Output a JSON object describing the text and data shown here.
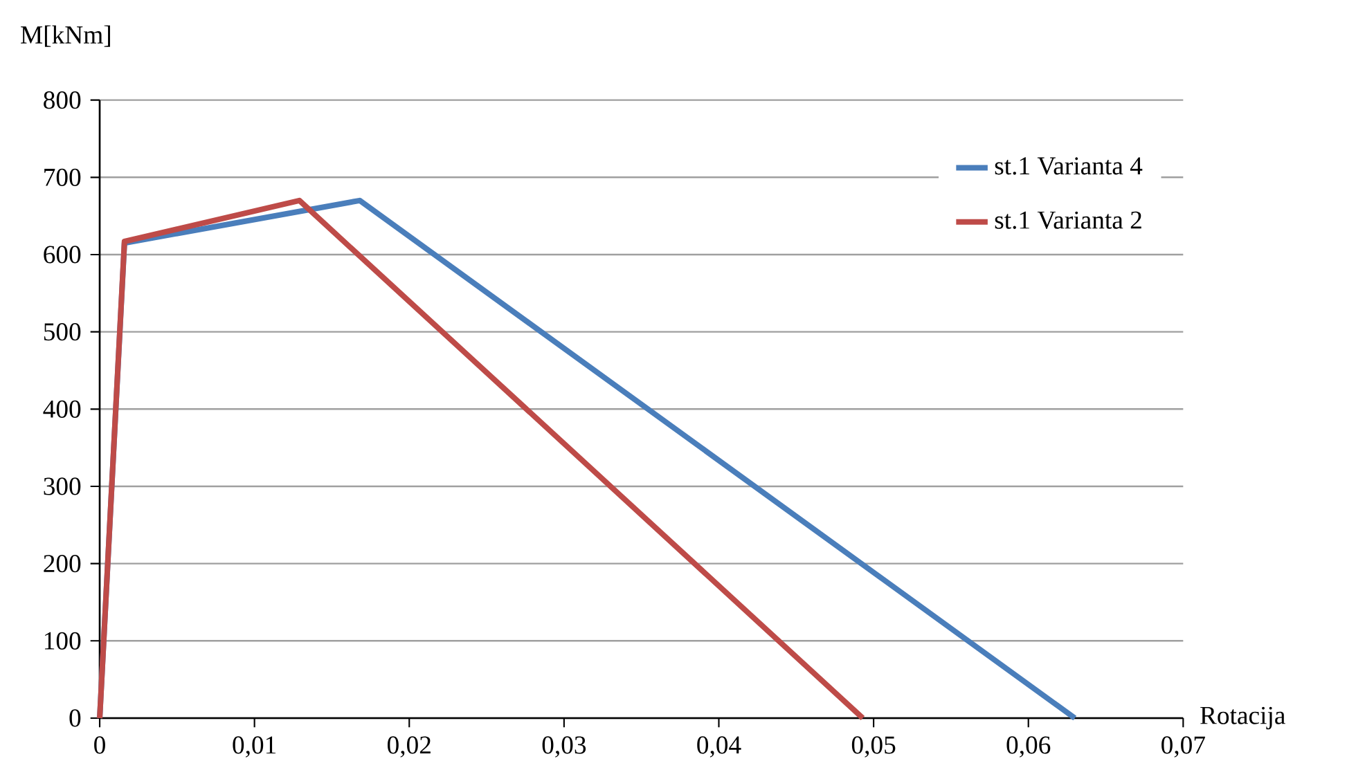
{
  "chart_data": {
    "type": "line",
    "xlabel": "Rotacija",
    "ylabel": "M[kNm]",
    "xlim": [
      0,
      0.07
    ],
    "ylim": [
      0,
      800
    ],
    "xticks": [
      {
        "value": 0,
        "label": "0"
      },
      {
        "value": 0.01,
        "label": "0,01"
      },
      {
        "value": 0.02,
        "label": "0,02"
      },
      {
        "value": 0.03,
        "label": "0,03"
      },
      {
        "value": 0.04,
        "label": "0,04"
      },
      {
        "value": 0.05,
        "label": "0,05"
      },
      {
        "value": 0.06,
        "label": "0,06"
      },
      {
        "value": 0.07,
        "label": "0,07"
      }
    ],
    "yticks": [
      0,
      100,
      200,
      300,
      400,
      500,
      600,
      700,
      800
    ],
    "grid": "y",
    "legend": "top right",
    "marker": "none",
    "line_style": "solid",
    "series": [
      {
        "name": "st.1 Varianta 4",
        "color": "#4a7ebb",
        "x": [
          0,
          0.0016,
          0.0168,
          0.063
        ],
        "values": [
          0,
          615,
          670,
          0
        ]
      },
      {
        "name": "st.1 Varianta 2",
        "color": "#be4b48",
        "x": [
          0,
          0.0016,
          0.0129,
          0.0493
        ],
        "values": [
          0,
          617,
          670,
          0
        ]
      }
    ]
  }
}
